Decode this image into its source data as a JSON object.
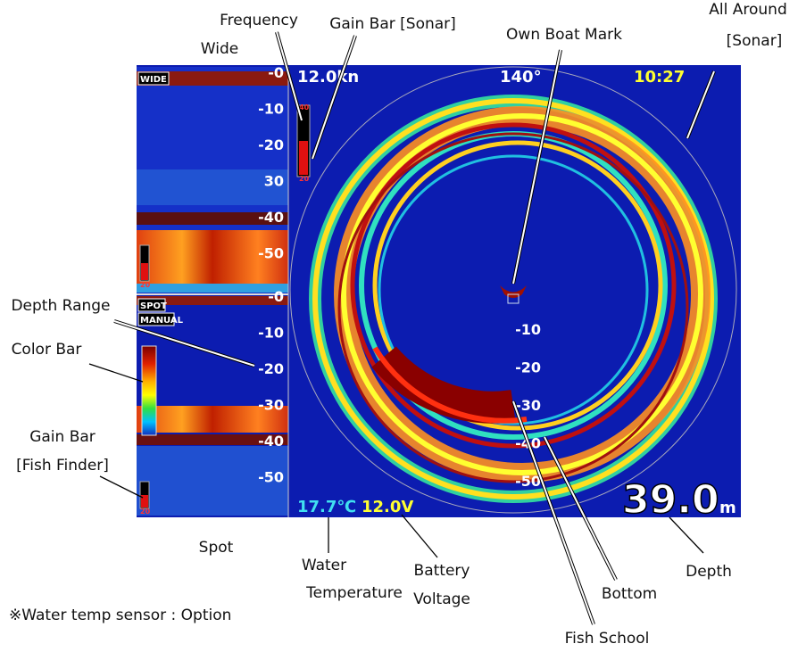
{
  "callouts": {
    "frequency": "Frequency",
    "gain_bar_sonar": "Gain Bar [Sonar]",
    "own_boat_mark": "Own Boat Mark",
    "all_around_1": "All Around",
    "all_around_2": "[Sonar]",
    "wide": "Wide",
    "depth_range": "Depth Range",
    "color_bar": "Color Bar",
    "gain_bar_ff_1": "Gain Bar",
    "gain_bar_ff_2": "[Fish Finder]",
    "spot": "Spot",
    "water_1": "Water",
    "water_2": "Temperature",
    "battery_1": "Battery",
    "battery_2": "Voltage",
    "depth": "Depth",
    "bottom": "Bottom",
    "fish_school": "Fish School"
  },
  "note": "※Water temp sensor : Option",
  "screen": {
    "speed": "12.0kn",
    "heading": "140°",
    "time": "10:27",
    "wide_tag": "WIDE",
    "spot_tag": "SPOT",
    "manual_tag": "MANUAL",
    "wide_depths": [
      "-0",
      "-10",
      "-20",
      "30",
      "-40",
      "-50"
    ],
    "spot_depths": [
      "-0",
      "-10",
      "-20",
      "-30",
      "-40",
      "-50"
    ],
    "sonar_depths": [
      "-10",
      "-20",
      "-30",
      "-40",
      "-50"
    ],
    "sonar_gain_top": "40",
    "sonar_gain_bottom": "20",
    "wide_gain": "20",
    "spot_gain": "20",
    "water_temp": "17.7℃",
    "voltage": "12.0V",
    "depth": "39.0",
    "depth_unit": "m"
  }
}
